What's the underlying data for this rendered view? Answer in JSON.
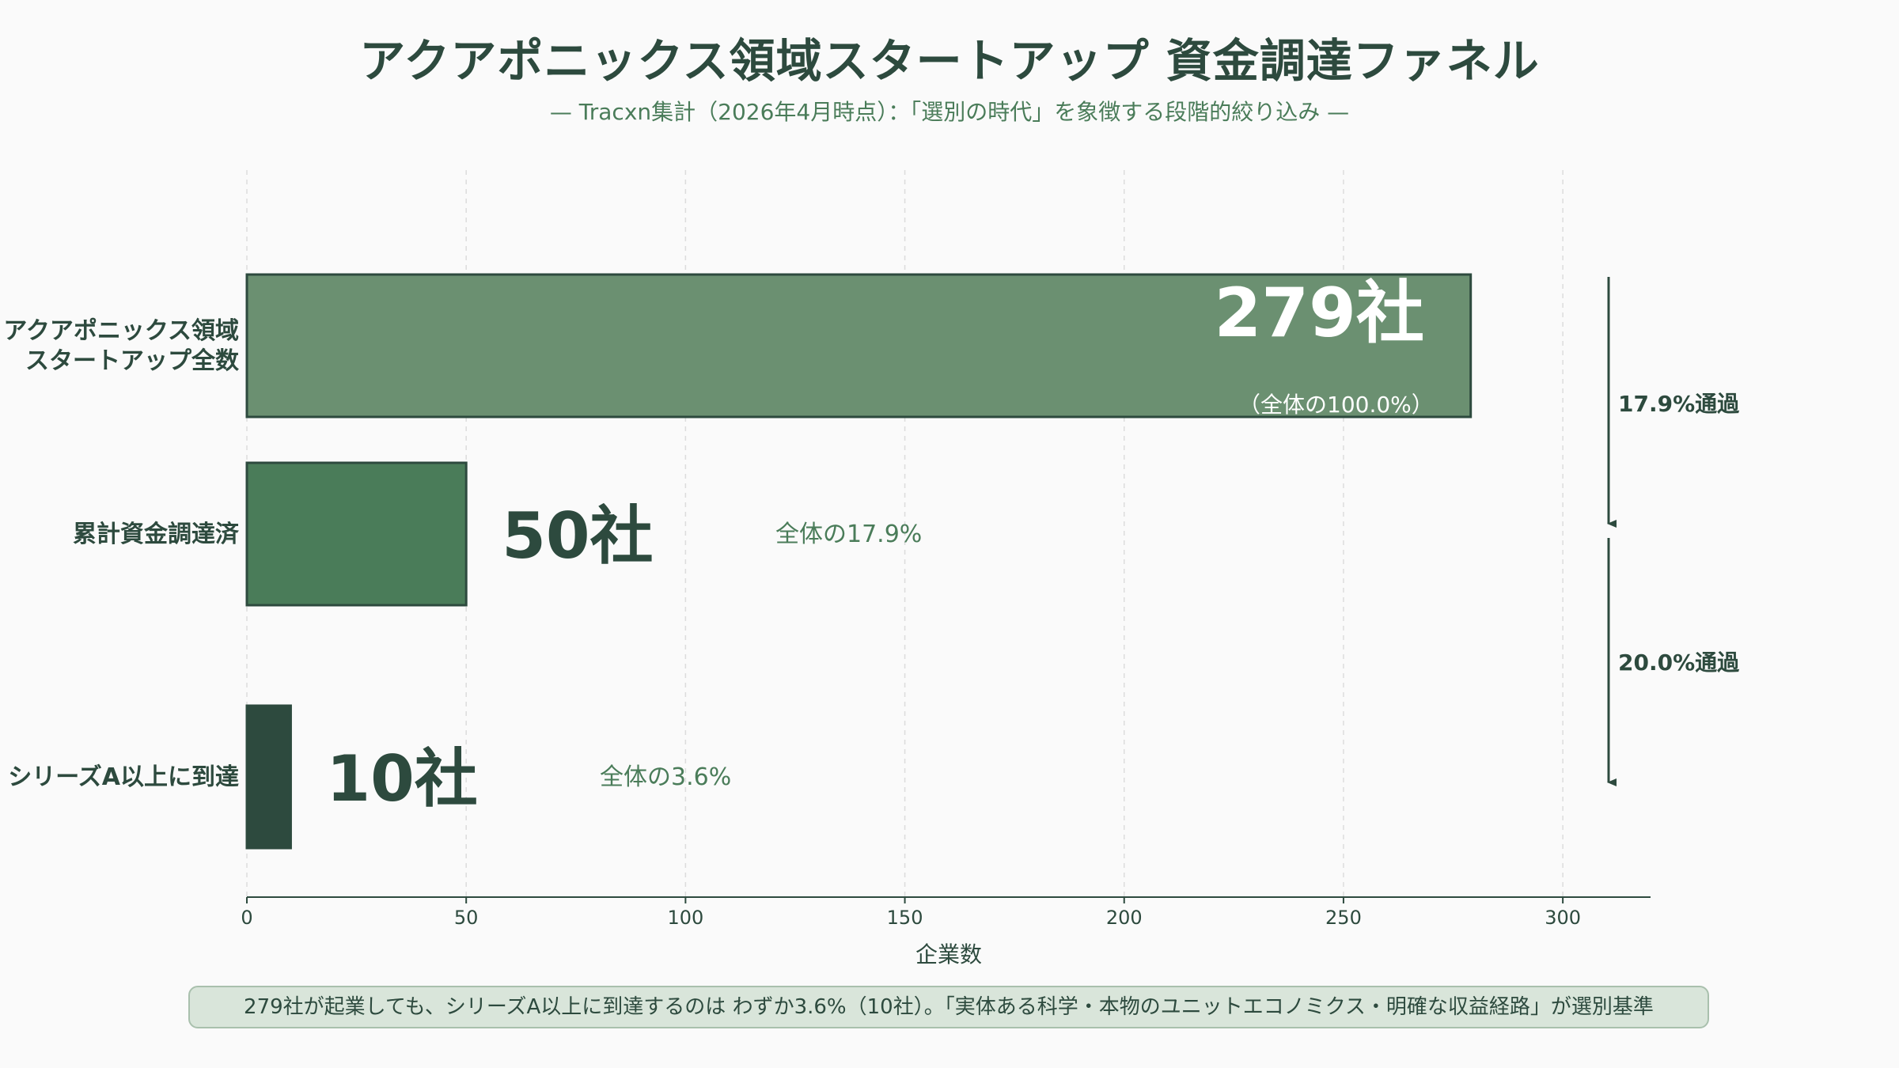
{
  "title": "アクアポニックス領域スタートアップ 資金調達ファネル",
  "subtitle": "— Tracxn集計（2026年4月時点）：「選別の時代」を象徴する段階的絞り込み —",
  "footnote": "279社が起業しても、シリーズA以上に到達するのは わずか3.6%（10社）。「実体ある科学・本物のユニットエコノミクス・明確な収益経路」が選別基準",
  "chart_data": {
    "type": "bar",
    "orientation": "horizontal",
    "categories": [
      [
        "アクアポニックス領域",
        "スタートアップ全数"
      ],
      [
        "累計資金調達済"
      ],
      [
        "シリーズA以上に到達"
      ]
    ],
    "values": [
      279,
      50,
      10
    ],
    "value_labels": [
      "279社",
      "50社",
      "10社"
    ],
    "share_labels": [
      "（全体の100.0%）",
      "全体の17.9%",
      "全体の3.6%"
    ],
    "conversion_labels": [
      "17.9%通過",
      "20.0%通過"
    ],
    "xlabel": "企業数",
    "xlim": [
      0,
      320
    ],
    "xticks": [
      0,
      50,
      100,
      150,
      200,
      250,
      300
    ],
    "grid": true,
    "colors": [
      "#6b9071",
      "#4a7c59",
      "#2d4a3e"
    ]
  }
}
